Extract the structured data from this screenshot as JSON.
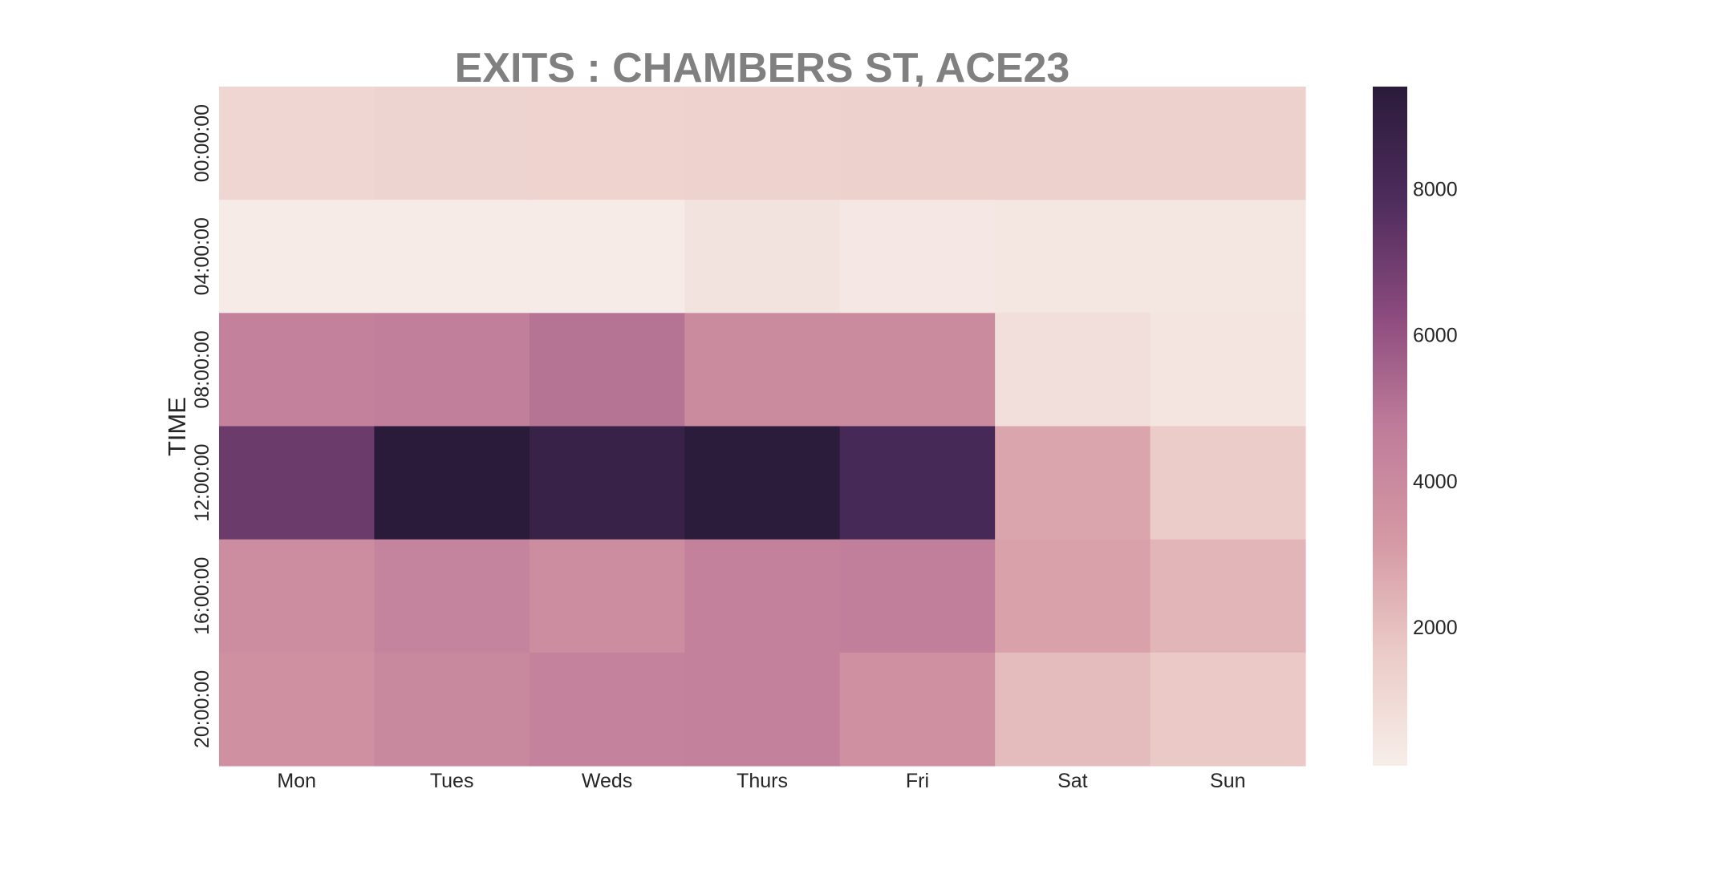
{
  "chart_data": {
    "type": "heatmap",
    "title": "EXITS : CHAMBERS ST, ACE23",
    "xlabel": "",
    "ylabel": "TIME",
    "x_categories": [
      "Mon",
      "Tues",
      "Weds",
      "Thurs",
      "Fri",
      "Sat",
      "Sun"
    ],
    "y_categories": [
      "00:00:00",
      "04:00:00",
      "08:00:00",
      "12:00:00",
      "16:00:00",
      "20:00:00"
    ],
    "values": [
      [
        1150,
        1250,
        1300,
        1350,
        1400,
        1400,
        1400
      ],
      [
        250,
        250,
        250,
        600,
        350,
        450,
        450
      ],
      [
        4500,
        4600,
        5000,
        3900,
        3900,
        800,
        500
      ],
      [
        7100,
        9400,
        8800,
        9300,
        8100,
        2800,
        1600
      ],
      [
        3800,
        4300,
        3800,
        4500,
        4600,
        2900,
        2300
      ],
      [
        3600,
        4100,
        4400,
        4500,
        3600,
        2100,
        1700
      ]
    ],
    "colorbar": {
      "range": [
        100,
        9400
      ],
      "ticks": [
        2000,
        4000,
        6000,
        8000
      ],
      "tick_labels": [
        "2000",
        "4000",
        "6000",
        "8000"
      ],
      "position": "right"
    },
    "colormap_stops": [
      "#f7eee9",
      "#ebcbc7",
      "#d598a4",
      "#bf7c9a",
      "#8a4a7d",
      "#4d2c5c",
      "#2a1b3a"
    ],
    "grid": false
  }
}
